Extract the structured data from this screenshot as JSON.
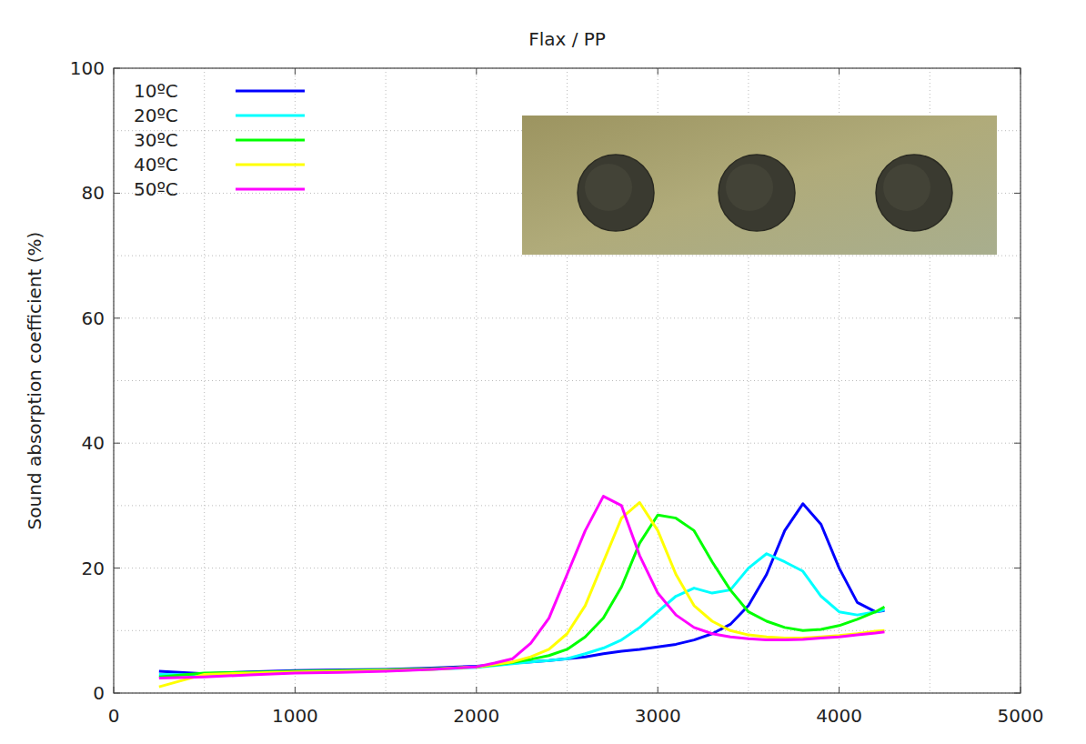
{
  "chart_data": {
    "type": "line",
    "title": "Flax / PP",
    "y_label": "Sound absorption coefficient (%)",
    "x": [
      250,
      500,
      750,
      1000,
      1250,
      1500,
      1750,
      2000,
      2100,
      2200,
      2300,
      2400,
      2500,
      2600,
      2700,
      2800,
      2900,
      3000,
      3100,
      3200,
      3300,
      3400,
      3500,
      3600,
      3700,
      3800,
      3900,
      4000,
      4100,
      4200,
      4250
    ],
    "series": [
      {
        "name": "10ºC",
        "color": "#0000ff",
        "values": [
          3.5,
          3.1,
          3.4,
          3.6,
          3.7,
          3.8,
          4.0,
          4.3,
          4.5,
          4.8,
          5.0,
          5.2,
          5.5,
          5.8,
          6.3,
          6.7,
          7.0,
          7.4,
          7.8,
          8.5,
          9.5,
          11,
          14,
          19,
          26,
          30.3,
          27,
          20,
          14.5,
          13,
          13.2
        ]
      },
      {
        "name": "20ºC",
        "color": "#00ffff",
        "values": [
          3.0,
          2.9,
          3.2,
          3.4,
          3.5,
          3.6,
          3.8,
          4.1,
          4.4,
          4.7,
          5.0,
          5.2,
          5.5,
          6.3,
          7.2,
          8.5,
          10.5,
          13,
          15.5,
          16.8,
          16,
          16.5,
          20,
          22.3,
          21,
          19.5,
          15.5,
          13,
          12.5,
          13,
          13.3
        ]
      },
      {
        "name": "30ºC",
        "color": "#00ff00",
        "values": [
          2.6,
          3.2,
          3.3,
          3.5,
          3.6,
          3.7,
          3.9,
          4.2,
          4.5,
          4.9,
          5.4,
          6,
          7,
          9,
          12,
          17,
          24,
          28.5,
          28,
          26,
          21,
          16.5,
          13,
          11.5,
          10.5,
          10,
          10.2,
          10.8,
          11.8,
          13,
          13.8
        ]
      },
      {
        "name": "40ºC",
        "color": "#ffff00",
        "values": [
          1.0,
          3.0,
          3.2,
          3.4,
          3.5,
          3.6,
          3.8,
          4.2,
          4.6,
          5,
          5.8,
          7,
          9.5,
          14,
          21,
          28,
          30.5,
          26,
          19,
          14,
          11.5,
          10,
          9.3,
          9,
          8.8,
          8.8,
          9,
          9.2,
          9.5,
          9.9,
          10
        ]
      },
      {
        "name": "50ºC",
        "color": "#ff00ff",
        "values": [
          2.4,
          2.6,
          2.9,
          3.2,
          3.3,
          3.5,
          3.8,
          4.2,
          4.8,
          5.5,
          8,
          12,
          19,
          26,
          31.5,
          30,
          22,
          16,
          12.5,
          10.5,
          9.5,
          9,
          8.7,
          8.5,
          8.5,
          8.6,
          8.8,
          9,
          9.3,
          9.6,
          9.8
        ]
      }
    ],
    "xlim": [
      0,
      5000
    ],
    "xticks": [
      0,
      1000,
      2000,
      3000,
      4000,
      5000
    ],
    "ylim": [
      0,
      100
    ],
    "yticks": [
      0,
      20,
      40,
      60,
      80,
      100
    ],
    "grid": true,
    "legend": "upper left"
  }
}
